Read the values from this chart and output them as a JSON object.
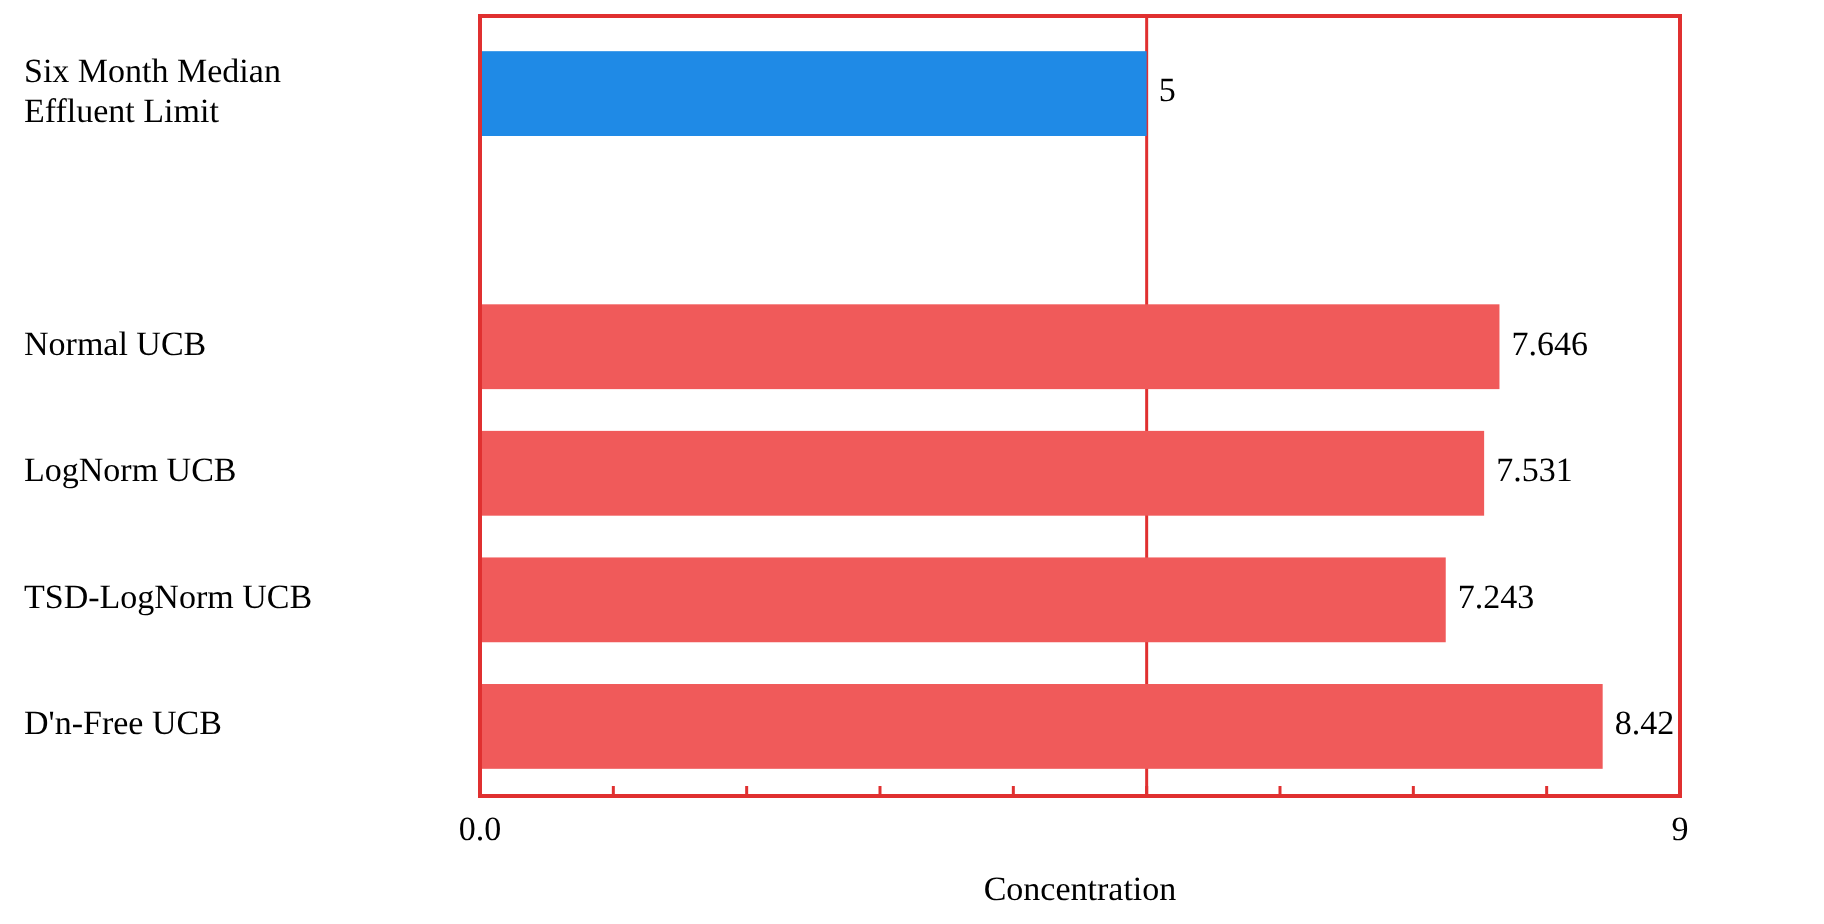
{
  "chart_data": {
    "type": "bar",
    "orientation": "horizontal",
    "xlabel": "Concentration",
    "categories": [
      "Six Month Median Effluent Limit",
      null,
      "Normal UCB",
      "LogNorm UCB",
      "TSD-LogNorm UCB",
      "D'n-Free UCB"
    ],
    "values": [
      5,
      null,
      7.646,
      7.531,
      7.243,
      8.42
    ],
    "colors": [
      "#1f8ae6",
      null,
      "#f05a5a",
      "#f05a5a",
      "#f05a5a",
      "#f05a5a"
    ],
    "xlim": [
      0,
      9
    ],
    "xticks": [
      {
        "value": 0,
        "label": "0.0"
      },
      {
        "value": 1,
        "label": null
      },
      {
        "value": 2,
        "label": null
      },
      {
        "value": 3,
        "label": null
      },
      {
        "value": 4,
        "label": null
      },
      {
        "value": 5,
        "label": null
      },
      {
        "value": 6,
        "label": null
      },
      {
        "value": 7,
        "label": null
      },
      {
        "value": 8,
        "label": null
      },
      9
    ],
    "ref_lines": [
      {
        "axis": "x",
        "value": 5,
        "color": "#e03030"
      }
    ],
    "data_labels": true
  }
}
